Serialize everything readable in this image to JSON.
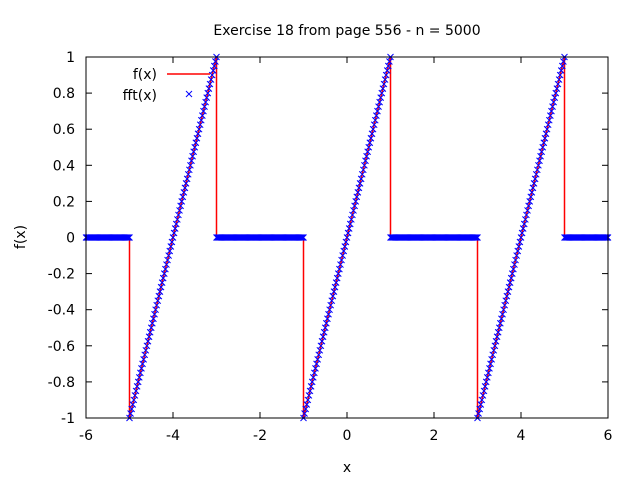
{
  "chart_data": {
    "type": "line",
    "title": "Exercise 18 from page 556 - n = 5000",
    "xlabel": "x",
    "ylabel": "f(x)",
    "xlim": [
      -6,
      6
    ],
    "ylim": [
      -1,
      1
    ],
    "x_ticks": [
      "-6",
      "-4",
      "-2",
      "0",
      "2",
      "4",
      "6"
    ],
    "y_ticks": [
      "1",
      "0.8",
      "0.6",
      "0.4",
      "0.2",
      "0",
      "-0.2",
      "-0.4",
      "-0.6",
      "-0.8",
      "-1"
    ],
    "grid": false,
    "legend_position": "top-left",
    "series": [
      {
        "name": "f(x)",
        "style": "line",
        "color": "#ff0000",
        "x": [
          -6,
          -5,
          -5,
          -3,
          -3,
          -1,
          -1,
          1,
          1,
          3,
          3,
          5,
          5,
          6
        ],
        "y": [
          0,
          0,
          -1,
          1,
          0,
          0,
          -1,
          1,
          0,
          0,
          -1,
          1,
          0,
          0
        ]
      },
      {
        "name": "fft(x)",
        "style": "points",
        "marker": "x",
        "color": "#0000ff",
        "x": [
          -6,
          -5,
          -5,
          -3,
          -3,
          -1,
          -1,
          1,
          1,
          3,
          3,
          5,
          5,
          6
        ],
        "y": [
          0,
          0,
          -1,
          1,
          0,
          0,
          -1,
          1,
          0,
          0,
          -1,
          1,
          0,
          0
        ]
      }
    ]
  }
}
